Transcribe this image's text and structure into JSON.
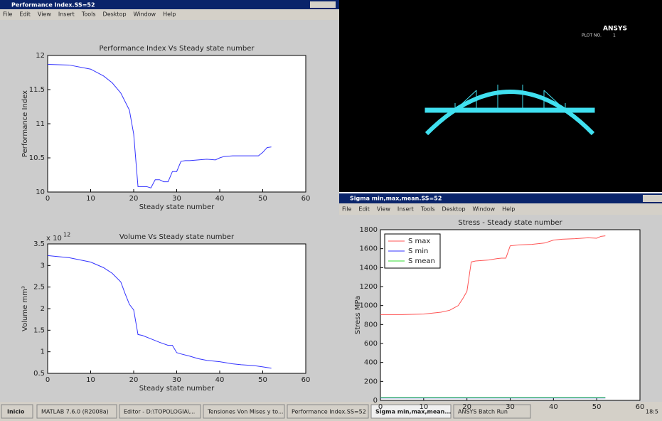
{
  "windows": [
    {
      "title": "Performance Index.SS=52",
      "menu": [
        "File",
        "Edit",
        "View",
        "Insert",
        "Tools",
        "Desktop",
        "Window",
        "Help"
      ]
    },
    {
      "title": "Sigma min,max,mean.SS=52",
      "menu": [
        "File",
        "Edit",
        "View",
        "Insert",
        "Tools",
        "Desktop",
        "Window",
        "Help"
      ]
    }
  ],
  "ansys": {
    "logo": "ANSYS",
    "plot_label": "PLOT NO.",
    "plot_number": "1"
  },
  "taskbar": {
    "start": "Inicio",
    "items": [
      "MATLAB 7.6.0 (R2008a)",
      "Editor - D:\\TOPOLOGIA\\...",
      "Tensiones Von Mises y to...",
      "Performance Index.SS=52",
      "Sigma min,max,mean...",
      "ANSYS Batch Run"
    ],
    "clock": "18:5"
  },
  "chart_data": [
    {
      "type": "line",
      "title": "Performance Index Vs Steady state number",
      "xlabel": "Steady state number",
      "ylabel": "Performance Index",
      "x": [
        0,
        5,
        10,
        13,
        15,
        17,
        19,
        20,
        21,
        22,
        23,
        24,
        25,
        26,
        27,
        28,
        29,
        30,
        31,
        32,
        33,
        35,
        37,
        39,
        40,
        41,
        43,
        45,
        47,
        49,
        50,
        51,
        52
      ],
      "series": [
        {
          "color": "#3333ff",
          "values": [
            11.87,
            11.86,
            11.8,
            11.7,
            11.6,
            11.45,
            11.2,
            10.85,
            10.08,
            10.08,
            10.08,
            10.06,
            10.18,
            10.18,
            10.15,
            10.15,
            10.3,
            10.3,
            10.45,
            10.46,
            10.46,
            10.47,
            10.48,
            10.47,
            10.5,
            10.52,
            10.53,
            10.53,
            10.53,
            10.53,
            10.58,
            10.65,
            10.66
          ]
        }
      ],
      "xlim": [
        0,
        60
      ],
      "xticks": [
        0,
        10,
        20,
        30,
        40,
        50,
        60
      ],
      "ylim": [
        10,
        12
      ],
      "yticks": [
        10,
        10.5,
        11,
        11.5,
        12
      ]
    },
    {
      "type": "line",
      "title": "Volume Vs Steady state number",
      "xlabel": "Steady state number",
      "ylabel": "Volume mm³",
      "y_multiplier": {
        "base": "x 10",
        "exponent": "12"
      },
      "x": [
        0,
        5,
        10,
        13,
        15,
        17,
        18,
        19,
        20,
        21,
        22,
        24,
        26,
        28,
        29,
        30,
        31,
        33,
        35,
        37,
        40,
        43,
        45,
        48,
        50,
        52
      ],
      "series": [
        {
          "color": "#3333ff",
          "values": [
            3.23,
            3.18,
            3.08,
            2.95,
            2.82,
            2.62,
            2.35,
            2.1,
            1.97,
            1.4,
            1.38,
            1.3,
            1.22,
            1.15,
            1.15,
            0.98,
            0.95,
            0.9,
            0.84,
            0.8,
            0.77,
            0.72,
            0.7,
            0.68,
            0.65,
            0.62
          ]
        }
      ],
      "xlim": [
        0,
        60
      ],
      "xticks": [
        0,
        10,
        20,
        30,
        40,
        50,
        60
      ],
      "ylim": [
        0.5,
        3.5
      ],
      "yticks": [
        0.5,
        1,
        1.5,
        2,
        2.5,
        3,
        3.5
      ]
    },
    {
      "type": "line",
      "title": "Stress - Steady state number",
      "ylabel": "Stress MPa",
      "legend": "upper left",
      "x": [
        0,
        5,
        10,
        14,
        16,
        18,
        19,
        20,
        21,
        22,
        25,
        27,
        28,
        29,
        30,
        32,
        35,
        38,
        40,
        42,
        45,
        48,
        50,
        51,
        52
      ],
      "series": [
        {
          "name": "S max",
          "color": "#ff5555",
          "values": [
            905,
            905,
            910,
            930,
            950,
            1000,
            1070,
            1150,
            1460,
            1470,
            1480,
            1495,
            1500,
            1500,
            1630,
            1640,
            1645,
            1660,
            1690,
            1700,
            1705,
            1715,
            1710,
            1730,
            1735
          ]
        },
        {
          "name": "S min",
          "color": "#3333ff",
          "values": [
            25,
            25,
            25,
            25,
            25,
            25,
            25,
            25,
            25,
            25,
            25,
            25,
            25,
            25,
            25,
            25,
            25,
            25,
            25,
            25,
            25,
            25,
            25,
            25,
            25
          ]
        },
        {
          "name": "S mean",
          "color": "#33dd33",
          "values": [
            30,
            30,
            30,
            30,
            30,
            30,
            30,
            30,
            30,
            30,
            30,
            30,
            30,
            30,
            30,
            30,
            30,
            30,
            30,
            30,
            30,
            30,
            30,
            30,
            30
          ]
        }
      ],
      "xlim": [
        0,
        60
      ],
      "xticks": [
        0,
        10,
        20,
        30,
        40,
        50,
        60
      ],
      "ylim": [
        0,
        1800
      ],
      "yticks": [
        0,
        200,
        400,
        600,
        800,
        1000,
        1200,
        1400,
        1600,
        1800
      ]
    }
  ]
}
